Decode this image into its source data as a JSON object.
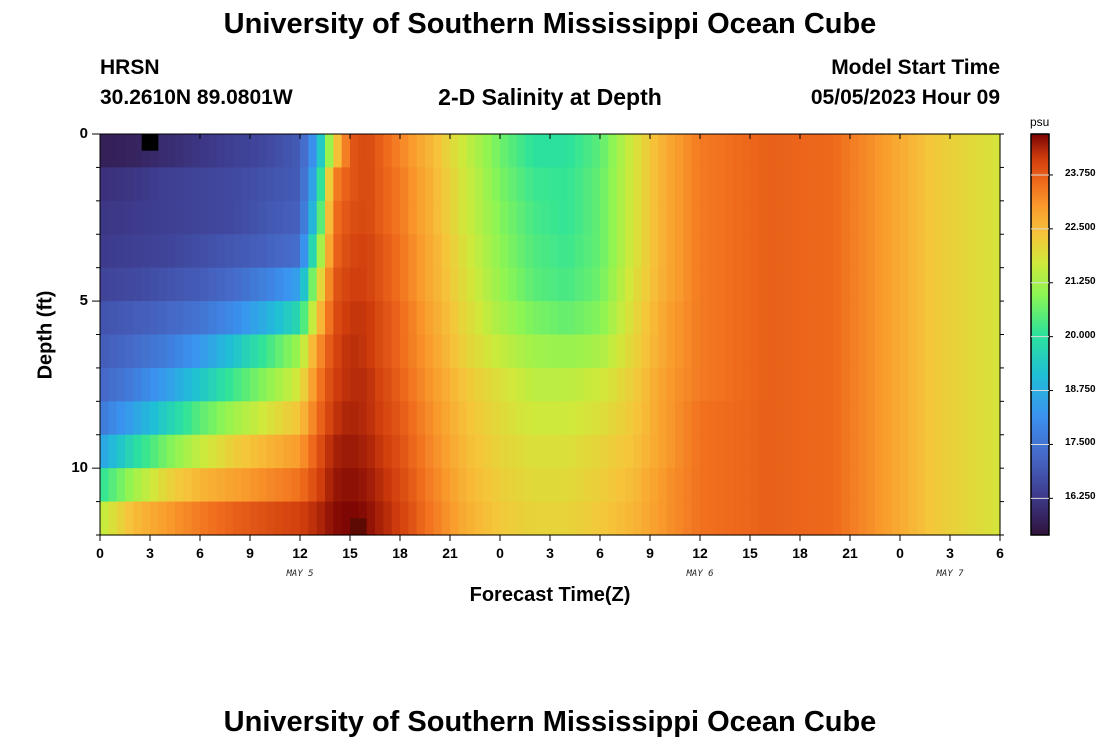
{
  "page": {
    "title": "University of Southern Mississippi Ocean Cube",
    "station": "HRSN",
    "coords": "30.2610N  89.0801W",
    "subtitle": "2-D Salinity at Depth",
    "model_label": "Model Start Time",
    "model_time": "05/05/2023 Hour 09",
    "footer_title": "University of Southern Mississippi Ocean Cube"
  },
  "chart_data": {
    "type": "heatmap",
    "title": "2-D Salinity at Depth",
    "xlabel": "Forecast Time(Z)",
    "ylabel": "Depth (ft)",
    "x_range_hours": [
      0,
      54
    ],
    "y_range_ft": [
      0,
      12
    ],
    "x_tick_labels": [
      "0",
      "3",
      "6",
      "9",
      "12",
      "15",
      "18",
      "21",
      "0",
      "3",
      "6",
      "9",
      "12",
      "15",
      "18",
      "21",
      "0",
      "3",
      "6"
    ],
    "y_tick_labels": [
      "0",
      "5",
      "10"
    ],
    "day_labels": [
      {
        "label": "MAY 5",
        "hour": 12
      },
      {
        "label": "MAY 6",
        "hour": 36
      },
      {
        "label": "MAY 7",
        "hour": 51
      }
    ],
    "colorbar": {
      "unit": "psu",
      "range": [
        15.4,
        24.7
      ],
      "ticks": [
        "16.250",
        "17.500",
        "18.750",
        "20.000",
        "21.250",
        "22.500",
        "23.750"
      ],
      "tick_values": [
        16.25,
        17.5,
        18.75,
        20.0,
        21.25,
        22.5,
        23.75
      ]
    },
    "depth_rows_ft": [
      0.5,
      1.5,
      2.5,
      3.5,
      4.5,
      5.5,
      6.5,
      7.5,
      8.5,
      9.5,
      10.5,
      11.5
    ],
    "time_knots_hours": [
      0,
      2,
      4,
      6,
      8,
      10,
      12,
      13,
      14,
      15,
      16,
      18,
      20,
      22,
      24,
      26,
      28,
      30,
      32,
      34,
      36,
      40,
      44,
      47,
      50,
      54
    ],
    "salinity_psu": [
      [
        15.7,
        15.8,
        16.0,
        16.2,
        16.4,
        16.6,
        17.0,
        18.5,
        22.0,
        23.8,
        24.0,
        23.3,
        22.5,
        21.6,
        20.7,
        20.0,
        20.0,
        20.5,
        21.8,
        22.8,
        23.4,
        23.7,
        23.6,
        23.0,
        22.3,
        21.8
      ],
      [
        16.1,
        16.2,
        16.4,
        16.5,
        16.6,
        16.8,
        17.0,
        19.0,
        23.3,
        23.8,
        24.0,
        23.4,
        22.6,
        21.7,
        20.8,
        20.2,
        20.1,
        20.6,
        21.8,
        22.8,
        23.4,
        23.7,
        23.6,
        23.0,
        22.3,
        21.8
      ],
      [
        16.2,
        16.3,
        16.4,
        16.5,
        16.6,
        16.9,
        17.1,
        19.5,
        23.5,
        23.9,
        24.0,
        23.4,
        22.6,
        21.7,
        20.9,
        20.3,
        20.1,
        20.6,
        21.8,
        22.8,
        23.4,
        23.7,
        23.6,
        23.0,
        22.3,
        21.8
      ],
      [
        16.3,
        16.4,
        16.5,
        16.7,
        16.9,
        17.1,
        17.4,
        20.5,
        23.6,
        24.0,
        24.1,
        23.5,
        22.7,
        21.8,
        21.0,
        20.4,
        20.2,
        20.6,
        21.8,
        22.8,
        23.4,
        23.7,
        23.6,
        23.0,
        22.3,
        21.8
      ],
      [
        16.5,
        16.6,
        16.8,
        17.0,
        17.3,
        17.8,
        18.5,
        21.5,
        23.8,
        24.1,
        24.1,
        23.5,
        22.7,
        21.9,
        21.1,
        20.5,
        20.3,
        20.7,
        21.9,
        22.8,
        23.4,
        23.7,
        23.6,
        23.0,
        22.3,
        21.8
      ],
      [
        16.8,
        17.0,
        17.2,
        17.5,
        18.0,
        18.8,
        19.8,
        22.2,
        23.9,
        24.2,
        24.2,
        23.6,
        22.8,
        22.0,
        21.3,
        20.8,
        20.6,
        20.9,
        22.0,
        22.9,
        23.4,
        23.7,
        23.6,
        23.0,
        22.3,
        21.8
      ],
      [
        17.0,
        17.3,
        17.7,
        18.3,
        19.2,
        20.2,
        21.2,
        23.0,
        24.0,
        24.3,
        24.2,
        23.6,
        22.9,
        22.1,
        21.6,
        21.2,
        21.1,
        21.3,
        22.1,
        22.9,
        23.4,
        23.7,
        23.6,
        23.0,
        22.3,
        21.8
      ],
      [
        17.2,
        17.7,
        18.4,
        19.3,
        20.2,
        21.0,
        21.8,
        23.3,
        24.1,
        24.3,
        24.3,
        23.7,
        23.0,
        22.3,
        21.9,
        21.5,
        21.5,
        21.7,
        22.2,
        23.0,
        23.4,
        23.7,
        23.6,
        23.0,
        22.3,
        21.8
      ],
      [
        17.6,
        18.5,
        19.5,
        20.5,
        21.2,
        21.8,
        22.4,
        23.5,
        24.2,
        24.4,
        24.3,
        23.8,
        23.1,
        22.4,
        22.0,
        21.7,
        21.7,
        21.9,
        22.3,
        23.0,
        23.5,
        23.7,
        23.6,
        23.0,
        22.3,
        21.8
      ],
      [
        18.5,
        19.8,
        20.8,
        21.6,
        22.2,
        22.6,
        23.0,
        23.8,
        24.4,
        24.5,
        24.4,
        23.9,
        23.2,
        22.5,
        22.1,
        21.9,
        21.9,
        22.1,
        22.4,
        23.0,
        23.5,
        23.7,
        23.6,
        23.0,
        22.3,
        21.8
      ],
      [
        20.0,
        21.2,
        22.1,
        22.6,
        22.9,
        23.2,
        23.5,
        24.0,
        24.5,
        24.6,
        24.5,
        24.0,
        23.3,
        22.6,
        22.2,
        22.0,
        22.0,
        22.2,
        22.5,
        23.1,
        23.5,
        23.7,
        23.6,
        23.0,
        22.3,
        21.8
      ],
      [
        21.5,
        22.5,
        23.0,
        23.4,
        23.7,
        23.9,
        24.1,
        24.3,
        24.6,
        24.7,
        24.6,
        24.1,
        23.4,
        22.7,
        22.3,
        22.1,
        22.1,
        22.3,
        22.6,
        23.1,
        23.5,
        23.7,
        23.6,
        23.0,
        22.3,
        21.8
      ]
    ],
    "peak_cells": [
      {
        "hour": 15.5,
        "depth_ft": 11.75,
        "psu": 24.7
      },
      {
        "hour": 3.0,
        "depth_ft": 0.25,
        "psu": 15.4
      }
    ]
  }
}
